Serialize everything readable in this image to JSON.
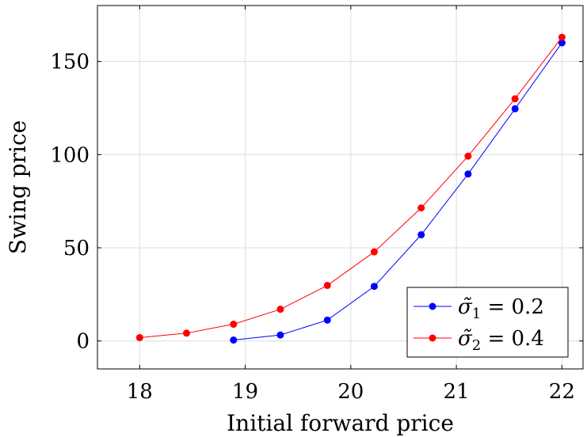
{
  "chart_data": {
    "type": "line",
    "title": "",
    "xlabel": "Initial forward price",
    "ylabel": "Swing price",
    "xlim": [
      17.6,
      22.2
    ],
    "ylim": [
      -15,
      180
    ],
    "x_ticks": [
      18,
      19,
      20,
      21,
      22
    ],
    "y_ticks": [
      0,
      50,
      100,
      150
    ],
    "grid": true,
    "legend_position": "bottom-right",
    "series": [
      {
        "name": "σ̃₁ = 0.2",
        "legend_symbol": "σ̃",
        "legend_subscript": "1",
        "legend_value": "= 0.2",
        "color": "#0000ff",
        "x": [
          18.889,
          19.333,
          19.778,
          20.222,
          20.667,
          21.111,
          21.556,
          22.0
        ],
        "y": [
          0.5,
          3.2,
          11.2,
          29.3,
          57.0,
          89.6,
          124.6,
          160.0
        ]
      },
      {
        "name": "σ̃₂ = 0.4",
        "legend_symbol": "σ̃",
        "legend_subscript": "2",
        "legend_value": "= 0.4",
        "color": "#ff0000",
        "x": [
          18.0,
          18.444,
          18.889,
          19.333,
          19.778,
          20.222,
          20.667,
          21.111,
          21.556,
          22.0
        ],
        "y": [
          1.8,
          4.2,
          9.0,
          17.0,
          29.8,
          47.8,
          71.4,
          99.2,
          130.0,
          163.0
        ]
      }
    ]
  }
}
